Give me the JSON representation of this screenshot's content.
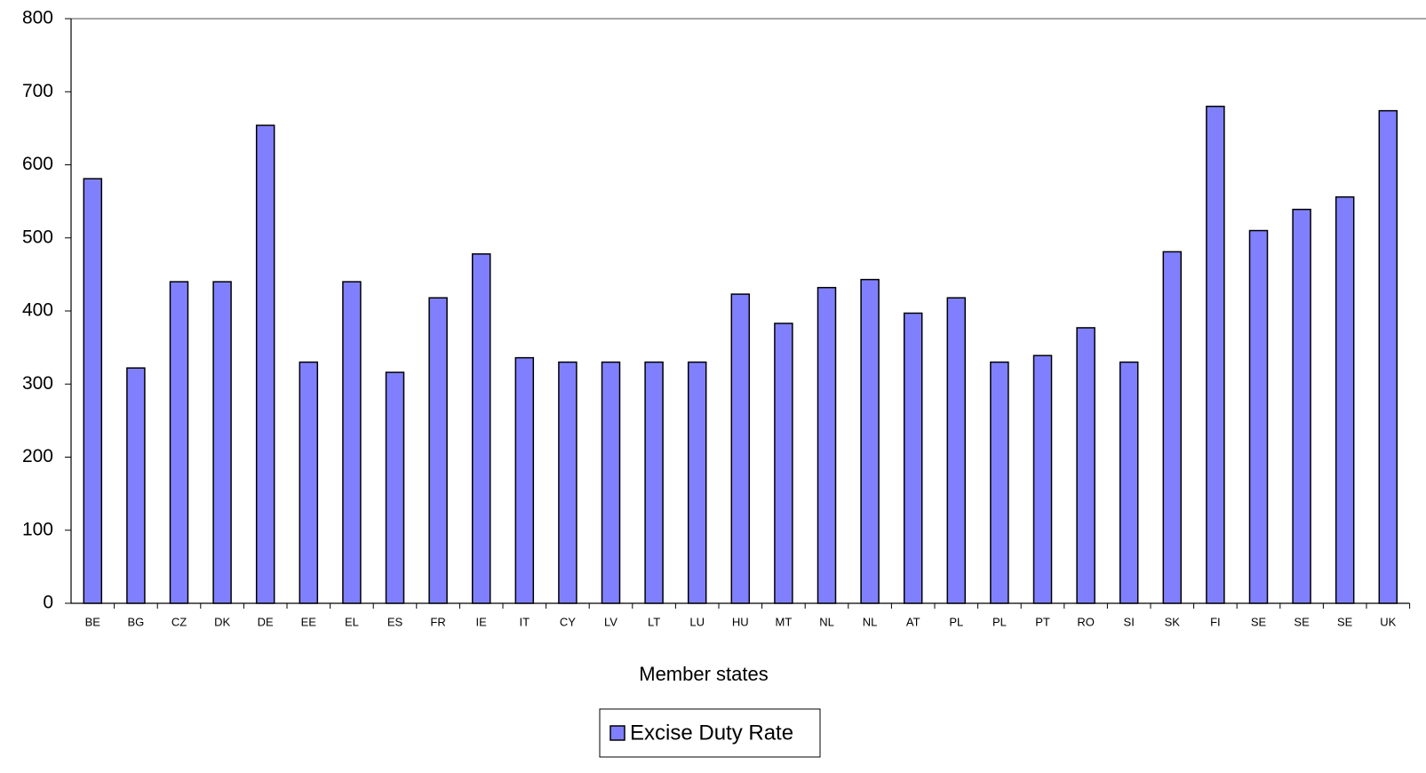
{
  "chart_data": {
    "type": "bar",
    "x_label": "Member states",
    "categories": [
      "BE",
      "BG",
      "CZ",
      "DK",
      "DE",
      "EE",
      "EL",
      "ES",
      "FR",
      "IE",
      "IT",
      "CY",
      "LV",
      "LT",
      "LU",
      "HU",
      "MT",
      "NL",
      "NL",
      "AT",
      "PL",
      "PL",
      "PT",
      "RO",
      "SI",
      "SK",
      "FI",
      "SE",
      "SE",
      "SE",
      "UK"
    ],
    "series": [
      {
        "name": "Excise Duty Rate",
        "color": "#8080ff",
        "values": [
          581,
          322,
          440,
          440,
          654,
          330,
          440,
          316,
          418,
          478,
          336,
          330,
          330,
          330,
          330,
          423,
          383,
          432,
          443,
          397,
          418,
          330,
          339,
          377,
          330,
          481,
          680,
          510,
          539,
          556,
          674
        ]
      }
    ],
    "ylim": [
      0,
      800
    ],
    "yticks": [
      0,
      100,
      200,
      300,
      400,
      500,
      600,
      700,
      800
    ]
  }
}
